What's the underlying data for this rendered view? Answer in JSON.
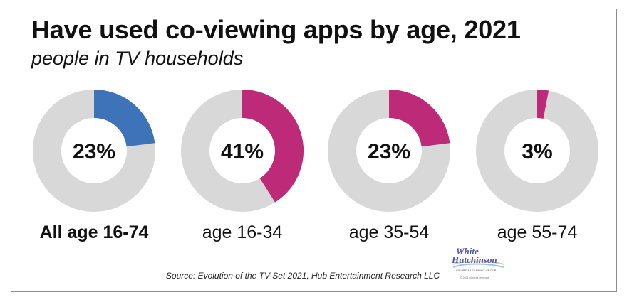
{
  "chart_data": {
    "type": "donut",
    "title": "Have used co-viewing apps by age, 2021",
    "subtitle": "people in TV households",
    "unit": "%",
    "series": [
      {
        "label": "All age 16-74",
        "value": 23,
        "display": "23%",
        "color": "#3f73b9",
        "label_bold": true
      },
      {
        "label": "age 16-34",
        "value": 41,
        "display": "41%",
        "color": "#bd2a78",
        "label_bold": false
      },
      {
        "label": "age 35-54",
        "value": 23,
        "display": "23%",
        "color": "#bd2a78",
        "label_bold": false
      },
      {
        "label": "age 55-74",
        "value": 3,
        "display": "3%",
        "color": "#bd2a78",
        "label_bold": false
      }
    ],
    "remainder_color": "#d8d8d8",
    "source": "Source: Evolution of the TV Set 2021, Hub Entertainment Research LLC"
  },
  "logo": {
    "line1": "White",
    "line2": "Hutchinson",
    "tagline": "LEISURE & LEARNING GROUP",
    "copyright": "© 2021 all rights reserved",
    "color": "#4f56a6"
  }
}
